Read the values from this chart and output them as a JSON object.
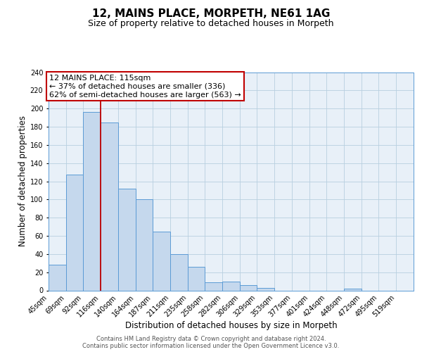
{
  "title": "12, MAINS PLACE, MORPETH, NE61 1AG",
  "subtitle": "Size of property relative to detached houses in Morpeth",
  "xlabel": "Distribution of detached houses by size in Morpeth",
  "ylabel": "Number of detached properties",
  "footer_line1": "Contains HM Land Registry data © Crown copyright and database right 2024.",
  "footer_line2": "Contains public sector information licensed under the Open Government Licence v3.0.",
  "bin_labels": [
    "45sqm",
    "69sqm",
    "92sqm",
    "116sqm",
    "140sqm",
    "164sqm",
    "187sqm",
    "211sqm",
    "235sqm",
    "258sqm",
    "282sqm",
    "306sqm",
    "329sqm",
    "353sqm",
    "377sqm",
    "401sqm",
    "424sqm",
    "448sqm",
    "472sqm",
    "495sqm",
    "519sqm"
  ],
  "bin_edges": [
    45,
    69,
    92,
    116,
    140,
    164,
    187,
    211,
    235,
    258,
    282,
    306,
    329,
    353,
    377,
    401,
    424,
    448,
    472,
    495,
    519,
    543
  ],
  "bar_heights": [
    28,
    127,
    196,
    185,
    112,
    100,
    65,
    40,
    26,
    9,
    10,
    6,
    3,
    0,
    0,
    0,
    0,
    2,
    0,
    0,
    0
  ],
  "bar_color": "#c5d8ed",
  "bar_edge_color": "#5b9bd5",
  "red_line_x": 116,
  "annotation_title": "12 MAINS PLACE: 115sqm",
  "annotation_line1": "← 37% of detached houses are smaller (336)",
  "annotation_line2": "62% of semi-detached houses are larger (563) →",
  "annotation_box_edge_color": "#c00000",
  "ylim": [
    0,
    240
  ],
  "yticks": [
    0,
    20,
    40,
    60,
    80,
    100,
    120,
    140,
    160,
    180,
    200,
    220,
    240
  ],
  "grid_color": "#b8cfe0",
  "background_color": "#e8f0f8",
  "title_fontsize": 11,
  "subtitle_fontsize": 9,
  "axis_label_fontsize": 8.5,
  "tick_fontsize": 7,
  "annotation_fontsize": 8,
  "footer_fontsize": 6
}
